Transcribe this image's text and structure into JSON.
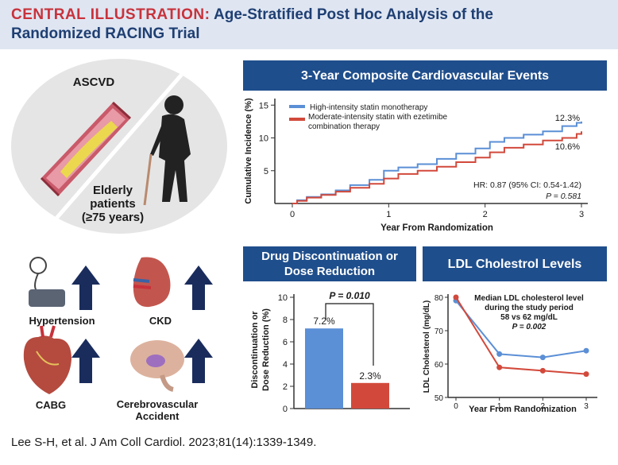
{
  "header": {
    "title_lead": "CENTRAL ILLUSTRATION:",
    "title_rest": "Age-Stratified Post Hoc Analysis of the",
    "title_line2": "Randomized RACING Trial"
  },
  "population": {
    "disease_label": "ASCVD",
    "group_line1": "Elderly",
    "group_line2": "patients",
    "group_line3": "(≥75 years)"
  },
  "risk_factors": [
    {
      "label": "Hypertension",
      "icon": "blood-pressure-cuff-icon"
    },
    {
      "label": "CKD",
      "icon": "kidney-icon"
    },
    {
      "label": "CABG",
      "icon": "heart-icon"
    },
    {
      "label": "Cerebrovascular",
      "label2": "Accident",
      "icon": "brain-icon"
    }
  ],
  "colors": {
    "high_intensity": "#5b8fd6",
    "combination": "#d2493b",
    "panel_title_bg": "#1f4e8c",
    "arrow": "#1a2c5c",
    "header_bg": "#dfe6f2",
    "header_lead": "#c8323b",
    "header_text": "#1f3f73"
  },
  "citation": "Lee S-H, et al. J Am Coll Cardiol. 2023;81(14):1339-1349.",
  "chart_data": [
    {
      "type": "line",
      "title": "3-Year Composite Cardiovascular Events",
      "xlabel": "Year From Randomization",
      "ylabel": "Cumulative Incidence (%)",
      "xlim": [
        0,
        3
      ],
      "ylim": [
        0,
        16
      ],
      "x_ticks": [
        0,
        1,
        2,
        3
      ],
      "y_ticks": [
        5,
        10,
        15
      ],
      "legend_placement": "top-left",
      "series": [
        {
          "name": "High-intensity statin monotherapy",
          "color": "#5b8fd6",
          "end_label": "12.3%",
          "points": [
            [
              0,
              0
            ],
            [
              0.05,
              0.5
            ],
            [
              0.15,
              1.0
            ],
            [
              0.3,
              1.4
            ],
            [
              0.45,
              2.0
            ],
            [
              0.6,
              2.8
            ],
            [
              0.8,
              3.6
            ],
            [
              0.95,
              5.0
            ],
            [
              1.1,
              5.5
            ],
            [
              1.3,
              6.0
            ],
            [
              1.5,
              6.8
            ],
            [
              1.7,
              7.6
            ],
            [
              1.9,
              8.4
            ],
            [
              2.05,
              9.4
            ],
            [
              2.2,
              10.0
            ],
            [
              2.4,
              10.5
            ],
            [
              2.6,
              11.0
            ],
            [
              2.8,
              11.8
            ],
            [
              2.95,
              12.3
            ],
            [
              3,
              12.5
            ]
          ]
        },
        {
          "name": "Moderate-intensity statin with ezetimibe combination therapy",
          "color": "#d2493b",
          "end_label": "10.6%",
          "points": [
            [
              0,
              0
            ],
            [
              0.05,
              0.4
            ],
            [
              0.15,
              0.9
            ],
            [
              0.3,
              1.3
            ],
            [
              0.45,
              1.8
            ],
            [
              0.6,
              2.4
            ],
            [
              0.8,
              3.0
            ],
            [
              0.95,
              3.8
            ],
            [
              1.1,
              4.5
            ],
            [
              1.3,
              5.0
            ],
            [
              1.5,
              5.6
            ],
            [
              1.7,
              6.3
            ],
            [
              1.9,
              7.0
            ],
            [
              2.05,
              7.8
            ],
            [
              2.2,
              8.5
            ],
            [
              2.4,
              9.0
            ],
            [
              2.6,
              9.6
            ],
            [
              2.8,
              10.0
            ],
            [
              2.95,
              10.6
            ],
            [
              3,
              11.0
            ]
          ]
        }
      ],
      "annotation_line1": "HR: 0.87 (95% CI: 0.54-1.42)",
      "annotation_line2": "P = 0.581"
    },
    {
      "type": "bar",
      "title": "Drug Discontinuation or Dose Reduction",
      "title_line1": "Drug Discontinuation or",
      "title_line2": "Dose Reduction",
      "ylabel_line1": "Discontinuation or",
      "ylabel_line2": "Dose Reduction (%)",
      "ylim": [
        0,
        10
      ],
      "y_ticks": [
        0,
        2,
        4,
        6,
        8,
        10
      ],
      "values": [
        7.2,
        2.3
      ],
      "value_labels": [
        "7.2%",
        "2.3%"
      ],
      "colors": [
        "#5b8fd6",
        "#d2493b"
      ],
      "annotation": "P = 0.010"
    },
    {
      "type": "line",
      "title": "LDL Cholestrol Levels",
      "xlabel": "Year From Randomization",
      "ylabel": "LDL Cholesterol (mg/dL)",
      "xlim": [
        0,
        3
      ],
      "ylim": [
        50,
        80
      ],
      "x_ticks": [
        0,
        1,
        2,
        3
      ],
      "y_ticks": [
        50,
        60,
        70,
        80
      ],
      "series": [
        {
          "color": "#5b8fd6",
          "x": [
            0,
            1,
            2,
            3
          ],
          "y": [
            79,
            63,
            62,
            64
          ]
        },
        {
          "color": "#d2493b",
          "x": [
            0,
            1,
            2,
            3
          ],
          "y": [
            80,
            59,
            58,
            57
          ]
        }
      ],
      "annotation_line1": "Median LDL cholesterol level",
      "annotation_line2": "during the study period",
      "annotation_line3": "58 vs 62 mg/dL",
      "annotation_line4": "P = 0.002"
    }
  ]
}
